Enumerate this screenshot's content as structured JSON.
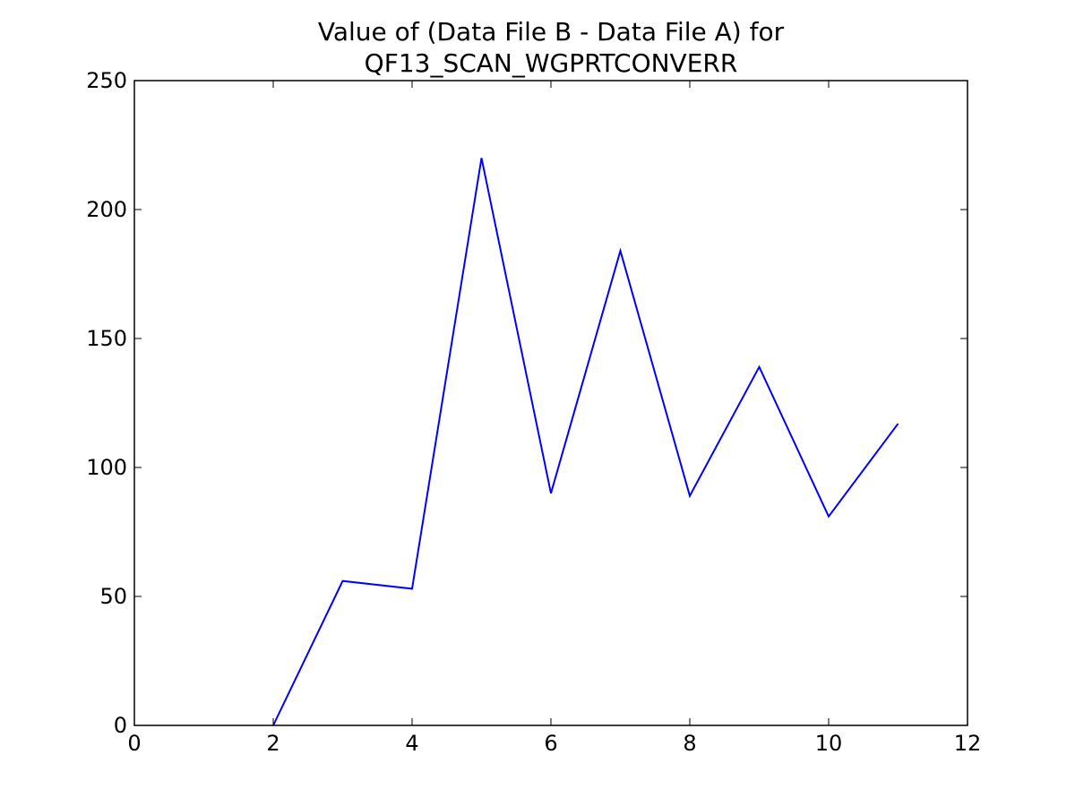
{
  "chart_data": {
    "type": "line",
    "title": [
      "Value of (Data File B - Data File A) for",
      "QF13_SCAN_WGPRTCONVERR"
    ],
    "x": [
      2,
      3,
      4,
      5,
      6,
      7,
      8,
      9,
      10,
      11
    ],
    "series": [
      {
        "color": "#0000ff",
        "values": [
          0,
          56,
          53,
          220,
          90,
          184,
          89,
          139,
          81,
          117
        ]
      }
    ],
    "xlim": [
      0,
      12
    ],
    "xticks": [
      0,
      2,
      4,
      6,
      8,
      10,
      12
    ],
    "ylim": [
      0,
      250
    ],
    "yticks": [
      0,
      50,
      100,
      150,
      200,
      250
    ],
    "grid": false
  }
}
